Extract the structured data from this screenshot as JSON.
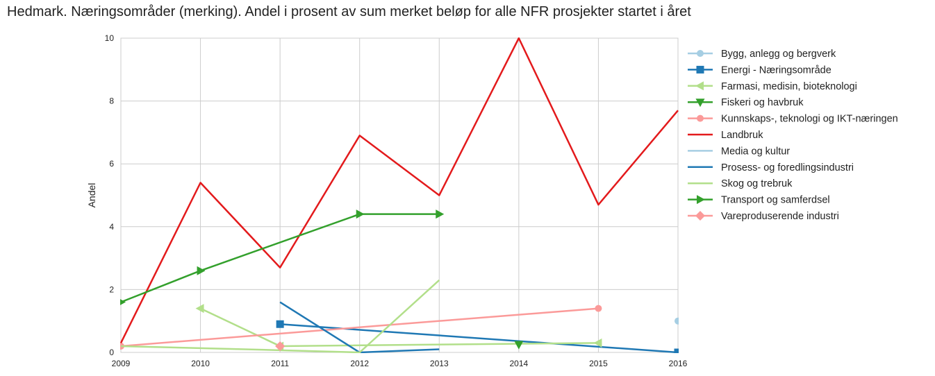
{
  "chart_data": {
    "type": "line",
    "title": "Hedmark. Næringsområder (merking). Andel i prosent av sum merket beløp for alle NFR prosjekter startet i året",
    "ylabel": "Andel",
    "xlabel": "",
    "xlim": [
      2009,
      2016
    ],
    "ylim": [
      0,
      10
    ],
    "x_ticks": [
      "2009",
      "2010",
      "2011",
      "2012",
      "2013",
      "2014",
      "2015",
      "2016"
    ],
    "y_ticks": [
      "0",
      "2",
      "4",
      "6",
      "8",
      "10"
    ],
    "grid": true,
    "legend_position": "outside-right",
    "series": [
      {
        "name": "Bygg, anlegg og bergverk",
        "color": "#a6cee3",
        "marker": "circle",
        "points": [
          [
            2016,
            1.0
          ]
        ]
      },
      {
        "name": "Energi - Næringsområde",
        "color": "#1f78b4",
        "marker": "square",
        "points": [
          [
            2011,
            0.9
          ],
          [
            2016,
            0.0
          ]
        ]
      },
      {
        "name": "Farmasi, medisin, bioteknologi",
        "color": "#b2df8a",
        "marker": "triangle-left",
        "points": [
          [
            2010,
            1.4
          ],
          [
            2011,
            0.2
          ],
          [
            2015,
            0.3
          ]
        ]
      },
      {
        "name": "Fiskeri og havbruk",
        "color": "#33a02c",
        "marker": "triangle-down",
        "points": [
          [
            2014,
            0.25
          ]
        ]
      },
      {
        "name": "Kunnskaps-, teknologi og IKT-næringen",
        "color": "#fb9a99",
        "marker": "circle",
        "points": [
          [
            2009,
            0.2
          ],
          [
            2015,
            1.4
          ]
        ]
      },
      {
        "name": "Landbruk",
        "color": "#e31a1c",
        "marker": "none",
        "points": [
          [
            2009,
            0.3
          ],
          [
            2010,
            5.4
          ],
          [
            2011,
            2.7
          ],
          [
            2012,
            6.9
          ],
          [
            2013,
            5.0
          ],
          [
            2014,
            10.0
          ],
          [
            2015,
            4.7
          ],
          [
            2016,
            7.7
          ]
        ]
      },
      {
        "name": "Media og kultur",
        "color": "#a6cee3",
        "marker": "none",
        "points": []
      },
      {
        "name": "Prosess- og foredlingsindustri",
        "color": "#1f78b4",
        "marker": "none",
        "points": [
          [
            2011,
            1.6
          ],
          [
            2012,
            0.0
          ],
          [
            2013,
            0.1
          ]
        ]
      },
      {
        "name": "Skog og trebruk",
        "color": "#b2df8a",
        "marker": "none",
        "points": [
          [
            2009,
            0.2
          ],
          [
            2011,
            0.07
          ],
          [
            2012,
            0.0
          ],
          [
            2013,
            2.3
          ]
        ]
      },
      {
        "name": "Transport og samferdsel",
        "color": "#33a02c",
        "marker": "triangle-right",
        "points": [
          [
            2009,
            1.6
          ],
          [
            2010,
            2.6
          ],
          [
            2012,
            4.4
          ],
          [
            2013,
            4.4
          ]
        ]
      },
      {
        "name": "Vareproduserende industri",
        "color": "#fb9a99",
        "marker": "diamond",
        "points": [
          [
            2011,
            0.2
          ]
        ]
      }
    ]
  }
}
